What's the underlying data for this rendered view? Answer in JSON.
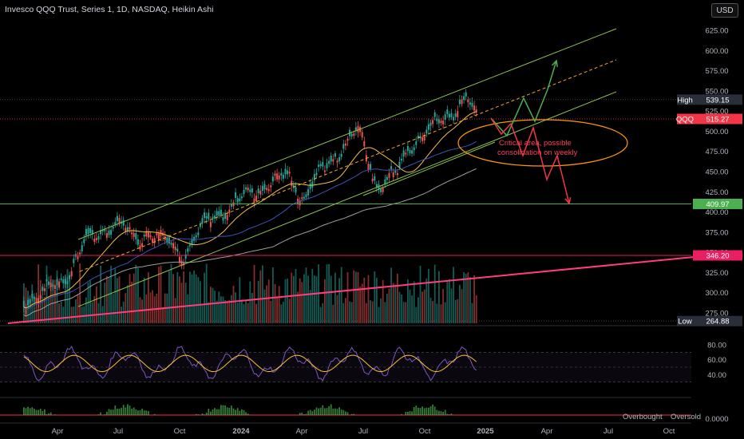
{
  "header": {
    "title": "Invesco QQQ Trust, Series 1, 1D, NASDAQ, Heikin Ashi",
    "currency_button": "USD"
  },
  "annotations": {
    "note_line1": "Critical area, possible",
    "note_line2": "consolidation on weekly"
  },
  "footer": {
    "overbought_label": "Overbought",
    "oversold_label": "Oversold"
  },
  "price_tags": {
    "high": {
      "label": "High",
      "value": "539.15",
      "price": 539.15
    },
    "current": {
      "label": "QQQ",
      "value": "515.27",
      "price": 515.27
    },
    "support": {
      "value": "409.97",
      "price": 409.97
    },
    "resistance_low": {
      "value": "346.20",
      "price": 346.2
    },
    "low": {
      "label": "Low",
      "value": "264.88",
      "price": 264.88
    }
  },
  "colors": {
    "background": "#000000",
    "candle_up": "#26a69a",
    "candle_down": "#ef5350",
    "channel": "#8bc34a",
    "trend_pink": "#ff3d7f",
    "ellipse": "#ff9800",
    "rsi_line": "#7e57c2",
    "rsi_ma": "#fbc02d",
    "current_tag": "#f23645",
    "support_tag": "#4caf50",
    "resistance_tag": "#e91e63"
  },
  "chart_data": {
    "type": "candlestick",
    "title": "Invesco QQQ Trust, Series 1, 1D, NASDAQ, Heikin Ashi",
    "price_axis": {
      "ticks": [
        625,
        600,
        575,
        550,
        525,
        500,
        475,
        450,
        425,
        400,
        375,
        350,
        325,
        300,
        275
      ],
      "tick_labels": [
        "625.00",
        "600.00",
        "575.00",
        "550.00",
        "525.00",
        "500.00",
        "475.00",
        "450.00",
        "425.00",
        "400.00",
        "375.00",
        "350.00",
        "325.00",
        "300.00",
        "275.00"
      ],
      "range": [
        260,
        640
      ]
    },
    "time_axis": {
      "labels": [
        "Apr",
        "Jul",
        "Oct",
        "2024",
        "Apr",
        "Jul",
        "Oct",
        "2025",
        "Apr",
        "Jul",
        "Oct"
      ]
    },
    "price_path": [
      [
        "2023-03-01",
        290
      ],
      [
        "2023-04-01",
        300
      ],
      [
        "2023-05-01",
        318
      ],
      [
        "2023-06-01",
        362
      ],
      [
        "2023-07-18",
        387
      ],
      [
        "2023-08-15",
        365
      ],
      [
        "2023-09-01",
        378
      ],
      [
        "2023-10-26",
        348
      ],
      [
        "2023-12-01",
        390
      ],
      [
        "2024-01-02",
        405
      ],
      [
        "2024-02-01",
        425
      ],
      [
        "2024-03-28",
        445
      ],
      [
        "2024-04-19",
        415
      ],
      [
        "2024-05-15",
        450
      ],
      [
        "2024-07-10",
        503
      ],
      [
        "2024-08-05",
        430
      ],
      [
        "2024-09-06",
        450
      ],
      [
        "2024-09-20",
        480
      ],
      [
        "2024-11-11",
        515
      ],
      [
        "2024-12-16",
        539
      ],
      [
        "2025-01-02",
        515
      ]
    ],
    "volume_note": "daily volume bars below price",
    "indicators": {
      "rsi": {
        "ticks": [
          80,
          60,
          40
        ],
        "tick_labels": [
          "80.00",
          "60.00",
          "40.00"
        ],
        "range": [
          20,
          95
        ]
      },
      "oscillator": {
        "tick_label": "0.0000"
      }
    },
    "drawings": {
      "horizontal_levels": [
        409.97,
        346.2
      ],
      "ellipse_center_price": 495
    }
  }
}
